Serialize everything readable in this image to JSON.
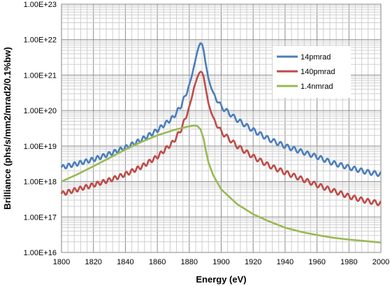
{
  "chart_data": {
    "type": "line",
    "xlabel": "Energy (eV)",
    "ylabel": "Brilliance (phs/s/mm2/mrad2/0.1%bw)",
    "xlim": [
      1800,
      2000
    ],
    "ylim": [
      1e+16,
      1e+23
    ],
    "y_scale": "log",
    "x_ticks": [
      "1800",
      "1820",
      "1840",
      "1860",
      "1880",
      "1900",
      "1920",
      "1940",
      "1960",
      "1980",
      "2000"
    ],
    "y_ticks": [
      "1.00E+16",
      "1.00E+17",
      "1.00E+18",
      "1.00E+19",
      "1.00E+20",
      "1.00E+21",
      "1.00E+22",
      "1.00E+23"
    ],
    "grid": "major and minor",
    "legend_position": "right",
    "series": [
      {
        "name": "14pmrad",
        "color": "#4a7ebb",
        "x": [
          1800,
          1810,
          1820,
          1830,
          1840,
          1850,
          1860,
          1870,
          1875,
          1880,
          1883,
          1885,
          1886,
          1887,
          1888,
          1889,
          1890,
          1892,
          1895,
          1900,
          1910,
          1920,
          1930,
          1940,
          1950,
          1960,
          1970,
          1980,
          1990,
          2000
        ],
        "y": [
          2.5e+18,
          3.2e+18,
          4.2e+18,
          6e+18,
          9e+18,
          1.5e+19,
          2.8e+19,
          6.5e+19,
          1.4e+20,
          5e+20,
          1.8e+21,
          4.5e+21,
          6.5e+21,
          8e+21,
          7.5e+21,
          5e+21,
          2.5e+21,
          8e+20,
          3e+20,
          1.3e+20,
          5.5e+19,
          2.8e+19,
          1.55e+19,
          1e+19,
          7e+18,
          5e+18,
          3.3e+18,
          2.5e+18,
          1.9e+18,
          1.6e+18
        ],
        "ripple": "oscillating"
      },
      {
        "name": "140pmrad",
        "color": "#be4b48",
        "x": [
          1800,
          1810,
          1820,
          1830,
          1840,
          1850,
          1860,
          1870,
          1875,
          1880,
          1883,
          1885,
          1886,
          1887,
          1888,
          1889,
          1890,
          1892,
          1895,
          1900,
          1910,
          1920,
          1930,
          1940,
          1950,
          1960,
          1970,
          1980,
          1990,
          2000
        ],
        "y": [
          4.5e+17,
          6e+17,
          8e+17,
          1.1e+18,
          1.6e+18,
          2.6e+18,
          5e+18,
          1.3e+19,
          3e+19,
          1.2e+20,
          4.5e+20,
          8.5e+20,
          1.1e+21,
          1.25e+21,
          1.2e+21,
          9e+20,
          5e+20,
          1.6e+20,
          6e+19,
          2.5e+19,
          1e+19,
          5e+18,
          2.8e+18,
          1.8e+18,
          1.2e+18,
          8e+17,
          5.5e+17,
          3.8e+17,
          2.9e+17,
          2.4e+17
        ],
        "ripple": "oscillating"
      },
      {
        "name": "1.4nmrad",
        "color": "#98b954",
        "x": [
          1800,
          1810,
          1820,
          1830,
          1840,
          1850,
          1860,
          1870,
          1875,
          1880,
          1883,
          1885,
          1887,
          1889,
          1890,
          1892,
          1895,
          1900,
          1910,
          1920,
          1930,
          1940,
          1950,
          1960,
          1970,
          1980,
          1990,
          2000
        ],
        "y": [
          1e+18,
          1.6e+18,
          2.7e+18,
          4.6e+18,
          8e+18,
          1.3e+19,
          2e+19,
          2.8e+19,
          3.2e+19,
          3.6e+19,
          3.8e+19,
          3.7e+19,
          3e+19,
          1.6e+19,
          9e+18,
          3.5e+18,
          1.5e+18,
          6e+17,
          2.3e+17,
          1.2e+17,
          7.5e+16,
          5e+16,
          3.8e+16,
          3.1e+16,
          2.6e+16,
          2.3e+16,
          2.1e+16,
          1.9e+16
        ],
        "ripple": "none"
      }
    ]
  }
}
